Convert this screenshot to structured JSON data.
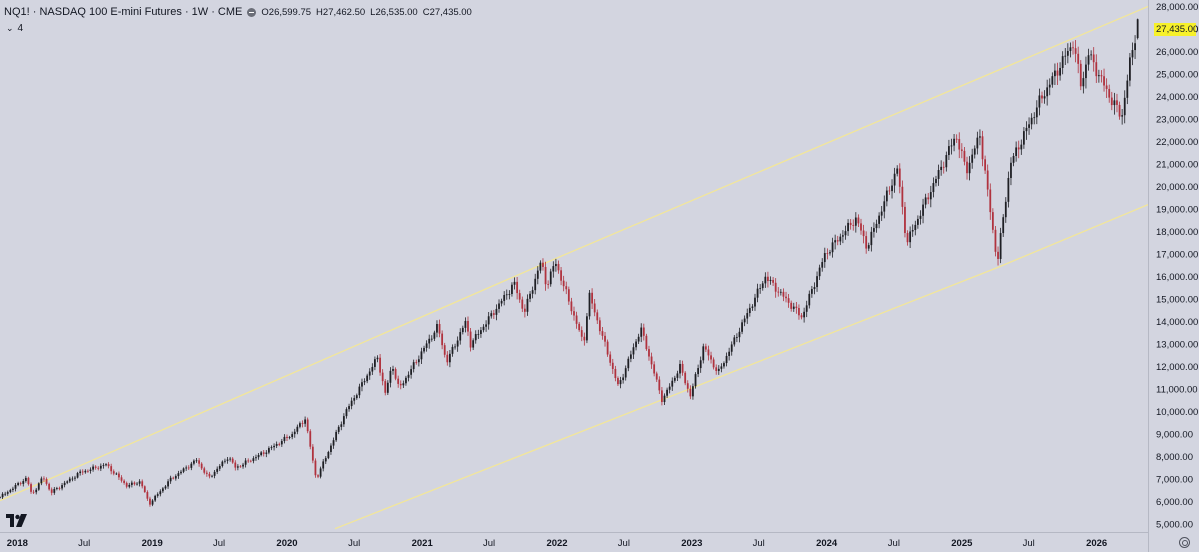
{
  "header": {
    "title": "NQ1! · NASDAQ 100 E-mini Futures · 1W · CME",
    "open": "O26,599.75",
    "high": "H27,462.50",
    "low": "L26,535.00",
    "close": "C27,435.00",
    "indicator_count": "4"
  },
  "last_price": "27,435.00",
  "colors": {
    "background": "#d3d5e0",
    "up": "#1e1f24",
    "down": "#b0323e",
    "channel": "#f2e69a",
    "last_price_tag": "#f7f12a"
  },
  "icons": [
    "eye-icon",
    "chevron-down-icon",
    "tradingview-logo",
    "settings-icon"
  ],
  "chart_data": {
    "type": "candlestick",
    "title": "NQ1! · NASDAQ 100 E-mini Futures · 1W · CME",
    "y_axis": {
      "position": "right",
      "range": [
        4700,
        28200
      ],
      "ticks": [
        5000,
        6000,
        7000,
        8000,
        9000,
        10000,
        11000,
        12000,
        13000,
        14000,
        15000,
        16000,
        17000,
        18000,
        19000,
        20000,
        21000,
        22000,
        23000,
        24000,
        25000,
        26000,
        27000,
        28000
      ],
      "tick_labels": [
        "5,000.00",
        "6,000.00",
        "7,000.00",
        "8,000.00",
        "9,000.00",
        "10,000.00",
        "11,000.00",
        "12,000.00",
        "13,000.00",
        "14,000.00",
        "15,000.00",
        "16,000.00",
        "17,000.00",
        "18,000.00",
        "19,000.00",
        "20,000.00",
        "21,000.00",
        "22,000.00",
        "23,000.00",
        "24,000.00",
        "25,000.00",
        "26,000.00",
        "27,000.00",
        "28,000.00"
      ]
    },
    "x_axis": {
      "range": [
        "2017-11-15",
        "2026-05-20"
      ],
      "ticks": [
        {
          "date": "2018-01-01",
          "label": "2018"
        },
        {
          "date": "2018-07-01",
          "label": "Jul"
        },
        {
          "date": "2019-01-01",
          "label": "2019"
        },
        {
          "date": "2019-07-01",
          "label": "Jul"
        },
        {
          "date": "2020-01-01",
          "label": "2020"
        },
        {
          "date": "2020-07-01",
          "label": "Jul"
        },
        {
          "date": "2021-01-01",
          "label": "2021"
        },
        {
          "date": "2021-07-01",
          "label": "Jul"
        },
        {
          "date": "2022-01-01",
          "label": "2022"
        },
        {
          "date": "2022-07-01",
          "label": "Jul"
        },
        {
          "date": "2023-01-01",
          "label": "2023"
        },
        {
          "date": "2023-07-01",
          "label": "Jul"
        },
        {
          "date": "2024-01-01",
          "label": "2024"
        },
        {
          "date": "2024-07-01",
          "label": "Jul"
        },
        {
          "date": "2025-01-01",
          "label": "2025"
        },
        {
          "date": "2025-07-01",
          "label": "Jul"
        },
        {
          "date": "2026-01-01",
          "label": "2026"
        }
      ]
    },
    "price_path": [
      {
        "date": "2017-11-15",
        "close": 6200
      },
      {
        "date": "2018-01-26",
        "close": 7050
      },
      {
        "date": "2018-02-09",
        "close": 6300
      },
      {
        "date": "2018-03-12",
        "close": 7100
      },
      {
        "date": "2018-04-02",
        "close": 6400
      },
      {
        "date": "2018-06-20",
        "close": 7300
      },
      {
        "date": "2018-08-29",
        "close": 7650
      },
      {
        "date": "2018-10-25",
        "close": 6700
      },
      {
        "date": "2018-11-30",
        "close": 6900
      },
      {
        "date": "2018-12-24",
        "close": 5900
      },
      {
        "date": "2019-02-20",
        "close": 7000
      },
      {
        "date": "2019-05-01",
        "close": 7850
      },
      {
        "date": "2019-06-03",
        "close": 7050
      },
      {
        "date": "2019-07-26",
        "close": 8000
      },
      {
        "date": "2019-08-15",
        "close": 7500
      },
      {
        "date": "2019-11-01",
        "close": 8200
      },
      {
        "date": "2020-01-15",
        "close": 9000
      },
      {
        "date": "2020-02-19",
        "close": 9700
      },
      {
        "date": "2020-03-20",
        "close": 7000
      },
      {
        "date": "2020-06-08",
        "close": 10000
      },
      {
        "date": "2020-09-02",
        "close": 12400
      },
      {
        "date": "2020-09-23",
        "close": 10800
      },
      {
        "date": "2020-10-12",
        "close": 12100
      },
      {
        "date": "2020-10-30",
        "close": 11000
      },
      {
        "date": "2021-02-12",
        "close": 13800
      },
      {
        "date": "2021-03-08",
        "close": 12200
      },
      {
        "date": "2021-04-29",
        "close": 14000
      },
      {
        "date": "2021-05-12",
        "close": 13000
      },
      {
        "date": "2021-09-07",
        "close": 15700
      },
      {
        "date": "2021-10-04",
        "close": 14400
      },
      {
        "date": "2021-11-19",
        "close": 16700
      },
      {
        "date": "2021-12-03",
        "close": 15600
      },
      {
        "date": "2021-12-28",
        "close": 16650
      },
      {
        "date": "2022-03-14",
        "close": 13000
      },
      {
        "date": "2022-03-29",
        "close": 15200
      },
      {
        "date": "2022-06-16",
        "close": 11100
      },
      {
        "date": "2022-08-16",
        "close": 13700
      },
      {
        "date": "2022-10-13",
        "close": 10500
      },
      {
        "date": "2022-11-30",
        "close": 12000
      },
      {
        "date": "2022-12-28",
        "close": 10700
      },
      {
        "date": "2023-02-02",
        "close": 12900
      },
      {
        "date": "2023-03-13",
        "close": 11700
      },
      {
        "date": "2023-07-19",
        "close": 16000
      },
      {
        "date": "2023-10-26",
        "close": 14200
      },
      {
        "date": "2023-12-28",
        "close": 17000
      },
      {
        "date": "2024-03-21",
        "close": 18600
      },
      {
        "date": "2024-04-19",
        "close": 17300
      },
      {
        "date": "2024-07-10",
        "close": 20800
      },
      {
        "date": "2024-08-05",
        "close": 17500
      },
      {
        "date": "2024-12-16",
        "close": 22300
      },
      {
        "date": "2025-01-13",
        "close": 20700
      },
      {
        "date": "2025-02-19",
        "close": 22300
      },
      {
        "date": "2025-04-07",
        "close": 16600
      },
      {
        "date": "2025-05-12",
        "close": 21000
      },
      {
        "date": "2025-07-31",
        "close": 23800
      },
      {
        "date": "2025-10-29",
        "close": 26400
      },
      {
        "date": "2025-11-20",
        "close": 24500
      },
      {
        "date": "2025-12-10",
        "close": 25900
      },
      {
        "date": "2026-02-05",
        "close": 24000
      },
      {
        "date": "2026-03-10",
        "close": 23100
      },
      {
        "date": "2026-03-31",
        "close": 25400
      },
      {
        "date": "2026-04-24",
        "close": 27435
      }
    ],
    "last_bar": {
      "open": 26599.75,
      "high": 27462.5,
      "low": 26535.0,
      "close": 27435.0
    },
    "channel_lines": [
      {
        "name": "upper",
        "points": [
          {
            "date": "2017-11-15",
            "value": 6050
          },
          {
            "date": "2021-12-28",
            "value": 16800
          },
          {
            "date": "2026-05-20",
            "value": 28000
          }
        ]
      },
      {
        "name": "lower",
        "points": [
          {
            "date": "2020-05-10",
            "value": 4800
          },
          {
            "date": "2025-04-07",
            "value": 16400
          },
          {
            "date": "2026-05-20",
            "value": 19200
          }
        ]
      }
    ],
    "grid": false,
    "legend": "top-left"
  }
}
